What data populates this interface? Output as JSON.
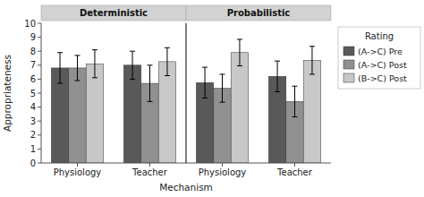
{
  "chart_data": {
    "type": "bar",
    "xlabel": "Mechanism",
    "ylabel": "Appropriateness",
    "categories": [
      "Physiology",
      "Teacher",
      "Physiology",
      "Teacher"
    ],
    "annotations": [
      "Deterministic",
      "Probabilistic"
    ],
    "series": [
      {
        "name": "(A->C) Pre",
        "color": "#595959",
        "values": [
          6.8,
          7.0,
          5.75,
          6.2
        ],
        "errors": [
          1.1,
          1.0,
          1.1,
          1.1
        ]
      },
      {
        "name": "(A->C) Post",
        "color": "#909090",
        "values": [
          6.8,
          5.7,
          5.35,
          4.4
        ],
        "errors": [
          0.9,
          1.3,
          1.0,
          1.1
        ]
      },
      {
        "name": "(B->C) Post",
        "color": "#c8c8c8",
        "values": [
          7.1,
          7.25,
          7.9,
          7.35
        ],
        "errors": [
          1.0,
          1.0,
          0.95,
          1.0
        ]
      }
    ],
    "legend_title": "Rating",
    "legend": "right",
    "ylim": [
      0,
      10
    ],
    "yticks": [
      0,
      1,
      2,
      3,
      4,
      5,
      6,
      7,
      8,
      9,
      10
    ],
    "grid": false
  }
}
